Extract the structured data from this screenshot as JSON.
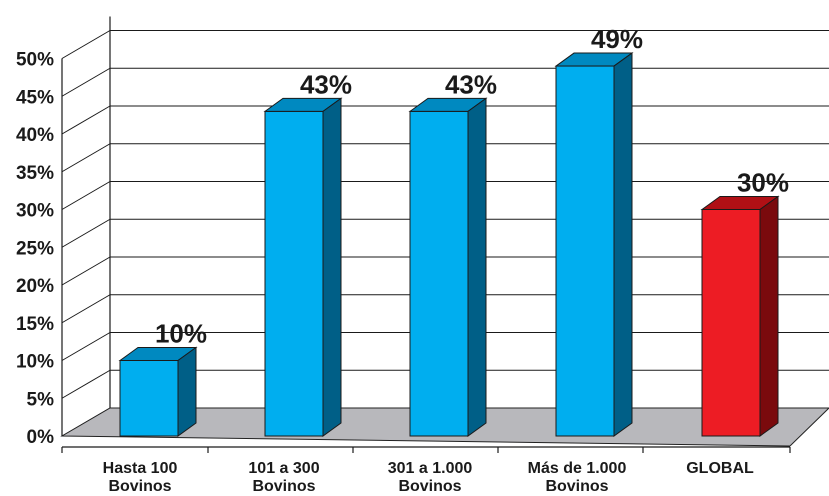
{
  "chart_data": {
    "type": "bar",
    "categories": [
      [
        "Hasta 100",
        "Bovinos"
      ],
      [
        "101 a 300",
        "Bovinos"
      ],
      [
        "301 a 1.000",
        "Bovinos"
      ],
      [
        "Más de 1.000",
        "Bovinos"
      ],
      [
        "GLOBAL"
      ]
    ],
    "values": [
      10,
      43,
      43,
      49,
      30
    ],
    "data_labels": [
      "10%",
      "43%",
      "43%",
      "49%",
      "30%"
    ],
    "yticks": [
      "0%",
      "5%",
      "10%",
      "15%",
      "20%",
      "25%",
      "30%",
      "35%",
      "40%",
      "45%",
      "50%"
    ],
    "ylim": [
      0,
      50
    ],
    "grid": true,
    "colors": {
      "bar_front": "#00aeef",
      "bar_top": "#0089c0",
      "bar_side": "#005f87",
      "highlight_front": "#ed1c24",
      "highlight_top": "#b01015",
      "highlight_side": "#7a0a0d",
      "floor": "#b8b8bc",
      "grid": "#1a1a1a"
    },
    "highlight_index": 4
  }
}
